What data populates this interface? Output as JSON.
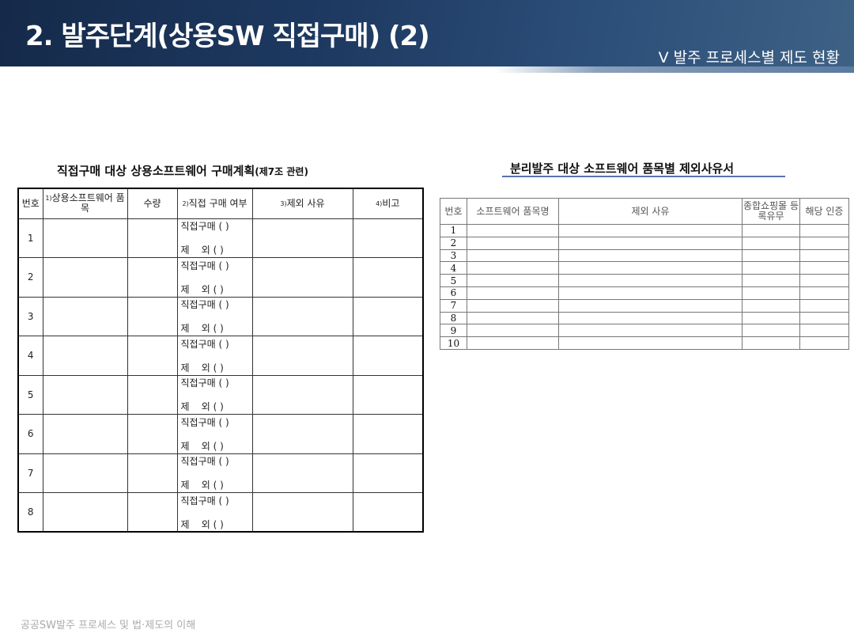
{
  "header": {
    "title": "2. 발주단계(상용SW 직접구매) (2)",
    "section": "V 발주 프로세스별 제도 현황"
  },
  "left_table": {
    "caption": "직접구매 대상 상용소프트웨어 구매계획",
    "caption_suffix": "(제7조 관련)",
    "headers": [
      {
        "sup": "",
        "label": "번호"
      },
      {
        "sup": "1)",
        "label": "상용소프트웨어 품목"
      },
      {
        "sup": "",
        "label": "수량"
      },
      {
        "sup": "2)",
        "label": "직접 구매 여부"
      },
      {
        "sup": "3)",
        "label": "제외 사유"
      },
      {
        "sup": "4)",
        "label": "비고"
      }
    ],
    "rows": [
      "1",
      "2",
      "3",
      "4",
      "5",
      "6",
      "7",
      "8"
    ],
    "choice_direct": "직접구매 ( )",
    "choice_exclude": "제    외 ( )"
  },
  "right_table": {
    "caption": "분리발주 대상 소프트웨어 품목별 제외사유서",
    "headers": [
      "번호",
      "소프트웨어 품목명",
      "제외 사유",
      "종합쇼핑몰 등록유무",
      "해당 인증"
    ],
    "rows": [
      "1",
      "2",
      "3",
      "4",
      "5",
      "6",
      "7",
      "8",
      "9",
      "10"
    ]
  },
  "footer": "공공SW발주 프로세스 및 법·제도의 이해"
}
